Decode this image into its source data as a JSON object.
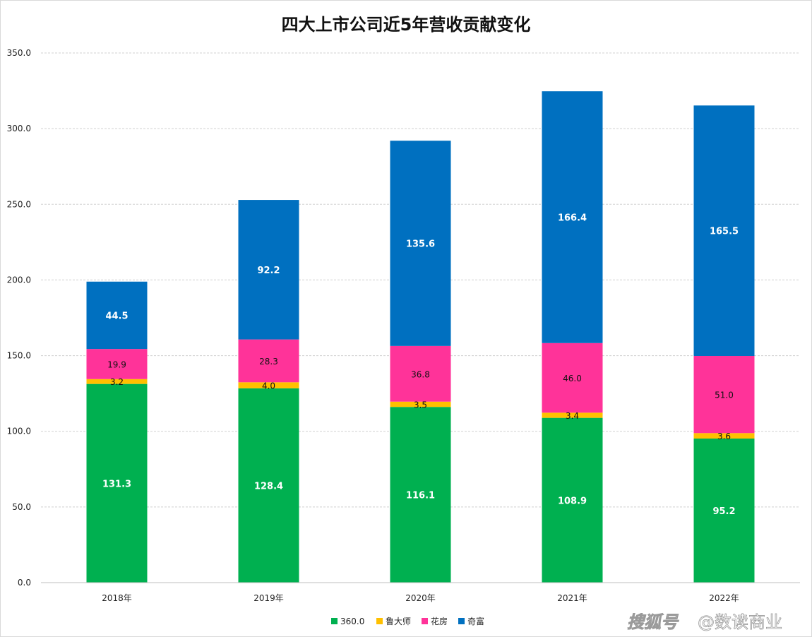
{
  "chart_data": {
    "type": "bar",
    "stacked": true,
    "title": "四大上市公司近5年营收贡献变化",
    "categories": [
      "2018年",
      "2019年",
      "2020年",
      "2021年",
      "2022年"
    ],
    "series": [
      {
        "name": "360.0",
        "color": "#00b050",
        "values": [
          131.3,
          128.4,
          116.1,
          108.9,
          95.2
        ]
      },
      {
        "name": "鲁大师",
        "color": "#ffc000",
        "values": [
          3.2,
          4.0,
          3.5,
          3.4,
          3.6
        ]
      },
      {
        "name": "花房",
        "color": "#ff3399",
        "values": [
          19.9,
          28.3,
          36.8,
          46.0,
          51.0
        ]
      },
      {
        "name": "奇富",
        "color": "#0070c0",
        "values": [
          44.5,
          92.2,
          135.6,
          166.4,
          165.5
        ]
      }
    ],
    "value_labels": [
      [
        "131.3",
        "128.4",
        "116.1",
        "108.9",
        "95.2"
      ],
      [
        "3.2",
        "4.0",
        "3.5",
        "3.4",
        "3.6"
      ],
      [
        "19.9",
        "28.3",
        "36.8",
        "46.0",
        "51.0"
      ],
      [
        "44.5",
        "92.2",
        "135.6",
        "166.4",
        "165.5"
      ]
    ],
    "ylim": [
      0,
      350
    ],
    "y_ticks": [
      0,
      50,
      100,
      150,
      200,
      250,
      300,
      350
    ],
    "y_tick_labels": [
      "0.0",
      "50.0",
      "100.0",
      "150.0",
      "200.0",
      "250.0",
      "300.0",
      "350.0"
    ],
    "xlabel": "",
    "ylabel": "",
    "grid": true,
    "legend_position": "bottom-center"
  },
  "watermark": {
    "logo": "搜狐号",
    "text": "@数读商业"
  }
}
